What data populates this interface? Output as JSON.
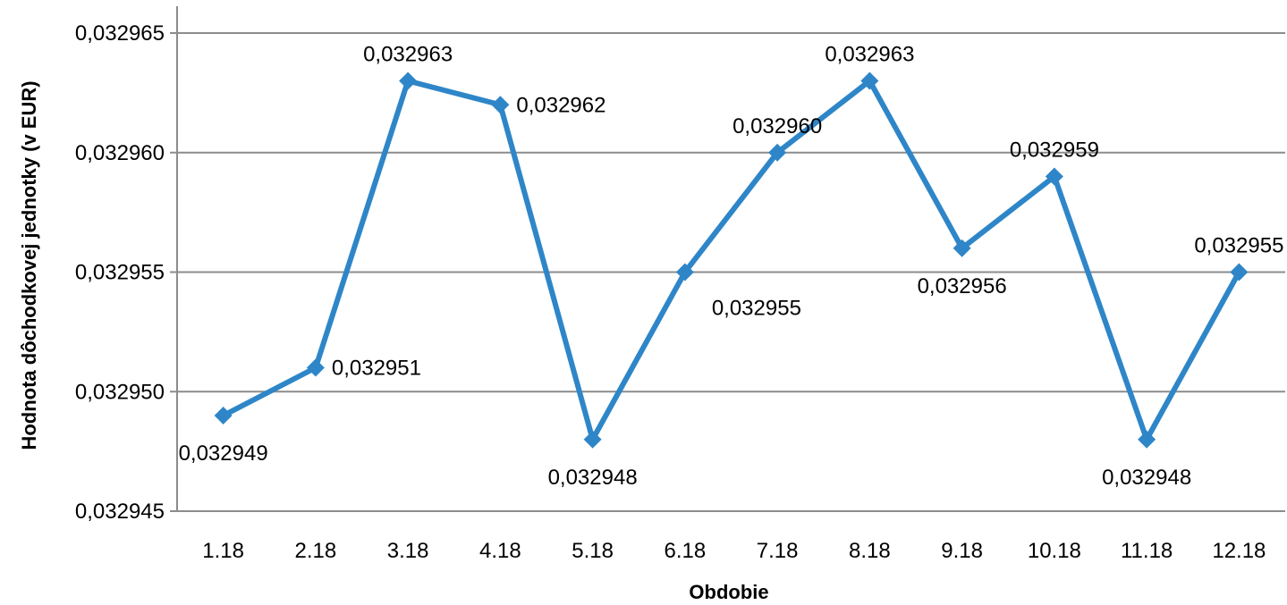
{
  "chart_data": {
    "type": "line",
    "title": "",
    "xlabel": "Obdobie",
    "ylabel": "Hodnota dôchodkovej jednotky (v EUR)",
    "categories": [
      "1.18",
      "2.18",
      "3.18",
      "4.18",
      "5.18",
      "6.18",
      "7.18",
      "8.18",
      "9.18",
      "10.18",
      "11.18",
      "12.18"
    ],
    "values": [
      0.032949,
      0.032951,
      0.032963,
      0.032962,
      0.032948,
      0.032955,
      0.03296,
      0.032963,
      0.032956,
      0.032959,
      0.032948,
      0.032955
    ],
    "data_labels": [
      "0,032949",
      "0,032951",
      "0,032963",
      "0,032962",
      "0,032948",
      "0,032955",
      "0,032960",
      "0,032963",
      "0,032956",
      "0,032959",
      "0,032948",
      "0,032955"
    ],
    "ylim": [
      0.032945,
      0.032965
    ],
    "y_ticks": [
      0.032945,
      0.03295,
      0.032955,
      0.03296,
      0.032965
    ],
    "y_tick_labels": [
      "0,032945",
      "0,032950",
      "0,032955",
      "0,032960",
      "0,032965"
    ],
    "grid": true,
    "line_color": "#2E86C8",
    "gridline_color": "#8C8C8C"
  }
}
